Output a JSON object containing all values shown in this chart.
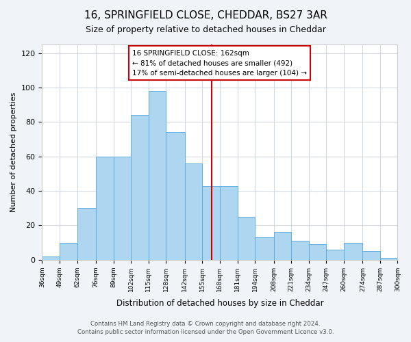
{
  "title": "16, SPRINGFIELD CLOSE, CHEDDAR, BS27 3AR",
  "subtitle": "Size of property relative to detached houses in Cheddar",
  "xlabel": "Distribution of detached houses by size in Cheddar",
  "ylabel": "Number of detached properties",
  "bin_labels": [
    "36sqm",
    "49sqm",
    "62sqm",
    "76sqm",
    "89sqm",
    "102sqm",
    "115sqm",
    "128sqm",
    "142sqm",
    "155sqm",
    "168sqm",
    "181sqm",
    "194sqm",
    "208sqm",
    "221sqm",
    "234sqm",
    "247sqm",
    "260sqm",
    "274sqm",
    "287sqm",
    "300sqm"
  ],
  "bin_edges": [
    36,
    49,
    62,
    76,
    89,
    102,
    115,
    128,
    142,
    155,
    168,
    181,
    194,
    208,
    221,
    234,
    247,
    260,
    274,
    287,
    300
  ],
  "bar_heights": [
    2,
    10,
    30,
    60,
    60,
    84,
    98,
    74,
    56,
    43,
    43,
    25,
    13,
    16,
    11,
    9,
    6,
    10,
    5,
    1
  ],
  "bar_color": "#aed6f1",
  "bar_edge_color": "#5dade2",
  "vline_x": 162,
  "vline_color": "#cc0000",
  "annotation_title": "16 SPRINGFIELD CLOSE: 162sqm",
  "annotation_line1": "← 81% of detached houses are smaller (492)",
  "annotation_line2": "17% of semi-detached houses are larger (104) →",
  "annotation_box_color": "#ffffff",
  "annotation_box_edge": "#cc0000",
  "ylim": [
    0,
    125
  ],
  "yticks": [
    0,
    20,
    40,
    60,
    80,
    100,
    120
  ],
  "footer_line1": "Contains HM Land Registry data © Crown copyright and database right 2024.",
  "footer_line2": "Contains public sector information licensed under the Open Government Licence v3.0.",
  "bg_color": "#f0f4f8",
  "plot_bg_color": "#ffffff",
  "grid_color": "#d0d8e0"
}
